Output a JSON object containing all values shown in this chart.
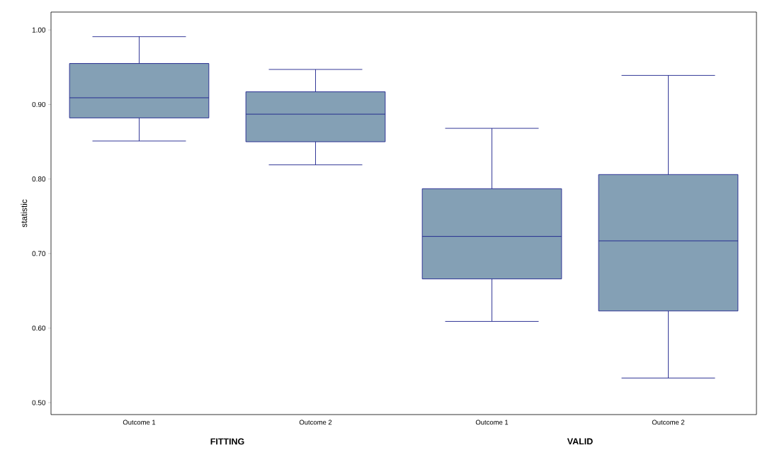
{
  "chart_data": {
    "type": "box",
    "ylabel": "statistic",
    "categories": [
      "Outcome 1",
      "Outcome 2",
      "Outcome 1",
      "Outcome 2"
    ],
    "color": "#84a0b5",
    "boxes": [
      {
        "low": 0.851,
        "q1": 0.882,
        "median": 0.909,
        "q3": 0.955,
        "high": 0.991
      },
      {
        "low": 0.819,
        "q1": 0.85,
        "median": 0.887,
        "q3": 0.917,
        "high": 0.947
      },
      {
        "low": 0.609,
        "q1": 0.666,
        "median": 0.723,
        "q3": 0.787,
        "high": 0.868
      },
      {
        "low": 0.533,
        "q1": 0.623,
        "median": 0.717,
        "q3": 0.806,
        "high": 0.939
      }
    ],
    "ylim": [
      0.484,
      1.024
    ],
    "yticks": [
      {
        "value": 0.5,
        "label": "0.50"
      },
      {
        "value": 0.6,
        "label": "0.60"
      },
      {
        "value": 0.7,
        "label": "0.70"
      },
      {
        "value": 0.8,
        "label": "0.80"
      },
      {
        "value": 0.9,
        "label": "0.90"
      },
      {
        "value": 1.0,
        "label": "1.00"
      }
    ],
    "annotations": [
      "FITTING",
      "VALID"
    ]
  }
}
